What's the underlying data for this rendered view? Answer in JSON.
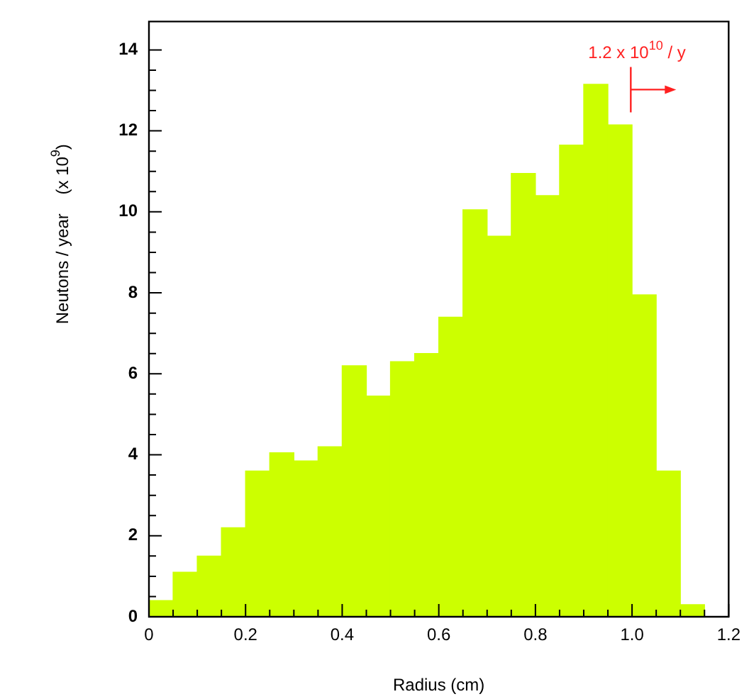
{
  "chart_data": {
    "type": "histogram",
    "xlabel": "Radius (cm)",
    "ylabel": "Neutons / year    (x 10$^{9}$)",
    "bins": [
      0,
      0.05,
      0.1,
      0.15,
      0.2,
      0.25,
      0.3,
      0.35,
      0.4,
      0.45,
      0.5,
      0.55,
      0.6,
      0.65,
      0.7,
      0.75,
      0.8,
      0.85,
      0.9,
      0.95,
      1.0,
      1.05,
      1.1,
      1.15
    ],
    "values": [
      0.4,
      1.1,
      1.5,
      2.2,
      3.6,
      4.05,
      3.85,
      4.2,
      6.2,
      5.45,
      6.3,
      6.5,
      7.4,
      10.05,
      9.4,
      10.95,
      10.4,
      11.65,
      13.15,
      12.15,
      7.95,
      3.6,
      0.3
    ],
    "color": "#ccff00",
    "xlim": [
      0,
      1.2
    ],
    "xticks": [
      0,
      0.2,
      0.4,
      0.6,
      0.8,
      {
        "value": 1.0,
        "label": "1.0"
      },
      1.2
    ],
    "ylim": [
      0,
      14.7
    ],
    "yticks": [
      0,
      2,
      4,
      6,
      8,
      10,
      12,
      14
    ],
    "grid": false,
    "legend": false,
    "annotations": [
      "1.2 x 10$^{10}$ / y"
    ]
  }
}
